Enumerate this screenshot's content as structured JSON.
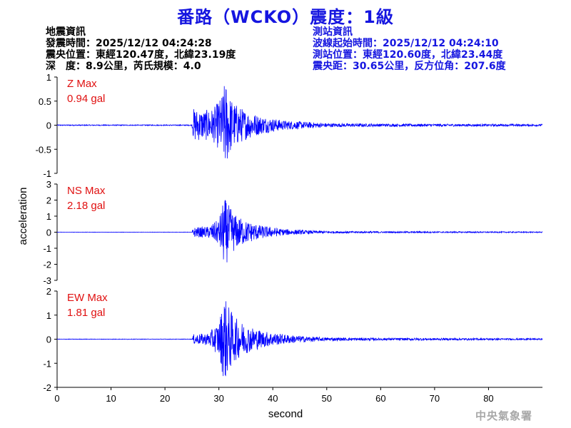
{
  "title": "番路（WCKO）震度：1級",
  "quake_info": {
    "heading": "地震資訊",
    "origin_time": "發震時間：2025/12/12 04:24:28",
    "epicenter": "震央位置：東經120.47度，北緯23.19度",
    "depth_magnitude": "深　度：8.9公里，芮氏規模：4.0"
  },
  "station_info": {
    "heading": "測站資訊",
    "wave_start": "波線起始時間：2025/12/12 04:24:10",
    "location": "測站位置：東經120.60度，北緯23.44度",
    "distance": "震央距：30.65公里，反方位角：207.6度"
  },
  "footer": "中央氣象署",
  "colors": {
    "title": "#1515e0",
    "trace": "#0000ff",
    "max_label": "#e01010",
    "station_text": "#1515e0"
  },
  "chart_data": {
    "type": "line",
    "xlabel": "second",
    "ylabel": "acceleration",
    "xlim": [
      0,
      90
    ],
    "xticks": [
      "0",
      "10",
      "20",
      "30",
      "40",
      "50",
      "60",
      "70",
      "80"
    ],
    "panels": [
      {
        "component": "Z",
        "max_title": "Z Max",
        "max_value": "0.94 gal",
        "ylim": [
          -1,
          1
        ],
        "yticks": [
          "1",
          "0.5",
          "0",
          "-0.5",
          "-1"
        ],
        "peak": 0.94,
        "waveform": [
          [
            0,
            0.01
          ],
          [
            25,
            0.01
          ],
          [
            25.3,
            0.35
          ],
          [
            27,
            0.3
          ],
          [
            29,
            0.35
          ],
          [
            30.5,
            0.6
          ],
          [
            31.2,
            0.94
          ],
          [
            32,
            0.6
          ],
          [
            33,
            0.45
          ],
          [
            35,
            0.3
          ],
          [
            38,
            0.18
          ],
          [
            42,
            0.1
          ],
          [
            46,
            0.07
          ],
          [
            50,
            0.04
          ],
          [
            60,
            0.03
          ],
          [
            90,
            0.02
          ]
        ]
      },
      {
        "component": "NS",
        "max_title": "NS Max",
        "max_value": "2.18 gal",
        "ylim": [
          -3,
          3
        ],
        "yticks": [
          "3",
          "2",
          "1",
          "0",
          "-1",
          "-2",
          "-3"
        ],
        "peak": 2.18,
        "waveform": [
          [
            0,
            0.01
          ],
          [
            25,
            0.01
          ],
          [
            25.3,
            0.3
          ],
          [
            28,
            0.35
          ],
          [
            30,
            0.8
          ],
          [
            31,
            2.18
          ],
          [
            32,
            1.6
          ],
          [
            33,
            1.1
          ],
          [
            35,
            0.7
          ],
          [
            38,
            0.4
          ],
          [
            42,
            0.2
          ],
          [
            46,
            0.12
          ],
          [
            50,
            0.07
          ],
          [
            60,
            0.05
          ],
          [
            90,
            0.03
          ]
        ]
      },
      {
        "component": "EW",
        "max_title": "EW Max",
        "max_value": "1.81 gal",
        "ylim": [
          -2,
          2
        ],
        "yticks": [
          "2",
          "1",
          "0",
          "-1",
          "-2"
        ],
        "peak": 1.81,
        "waveform": [
          [
            0,
            0.01
          ],
          [
            25,
            0.01
          ],
          [
            25.3,
            0.2
          ],
          [
            28,
            0.25
          ],
          [
            30,
            0.7
          ],
          [
            31,
            1.81
          ],
          [
            32,
            1.3
          ],
          [
            33,
            0.9
          ],
          [
            35,
            0.6
          ],
          [
            38,
            0.35
          ],
          [
            42,
            0.2
          ],
          [
            46,
            0.12
          ],
          [
            50,
            0.07
          ],
          [
            60,
            0.05
          ],
          [
            90,
            0.03
          ]
        ]
      }
    ]
  }
}
